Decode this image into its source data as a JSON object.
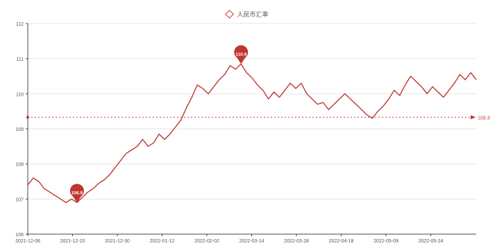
{
  "chart_data": {
    "type": "line",
    "legend": {
      "position": "top-center",
      "items": [
        "人民币汇率"
      ]
    },
    "y_axis": {
      "min": 106,
      "max": 112,
      "ticks": [
        106,
        107,
        108,
        109,
        110,
        111,
        112
      ],
      "grid": true
    },
    "x_axis": {
      "tick_labels": [
        "2021-12-06",
        "2021-12-20",
        "2021-12-30",
        "2022-01-12",
        "2022-02-02",
        "2022-03-14",
        "2022-03-28",
        "2022-04-18",
        "2022-05-09",
        "2022-05-24"
      ]
    },
    "series": [
      {
        "name": "人民币汇率",
        "color": "#c23531",
        "values": [
          107.4,
          107.6,
          107.5,
          107.3,
          107.2,
          107.1,
          107.0,
          106.9,
          107.0,
          106.9,
          107.05,
          107.2,
          107.3,
          107.45,
          107.55,
          107.7,
          107.9,
          108.1,
          108.3,
          108.4,
          108.5,
          108.7,
          108.5,
          108.6,
          108.85,
          108.7,
          108.85,
          109.05,
          109.25,
          109.6,
          109.9,
          110.25,
          110.15,
          110.0,
          110.2,
          110.4,
          110.55,
          110.8,
          110.7,
          110.85,
          110.6,
          110.45,
          110.25,
          110.1,
          109.85,
          110.05,
          109.9,
          110.1,
          110.3,
          110.15,
          110.3,
          110.0,
          109.85,
          109.7,
          109.75,
          109.55,
          109.7,
          109.85,
          110.0,
          109.85,
          109.7,
          109.55,
          109.4,
          109.3,
          109.5,
          109.65,
          109.85,
          110.1,
          109.95,
          110.25,
          110.5,
          110.35,
          110.2,
          110.0,
          110.2,
          110.05,
          109.9,
          110.1,
          110.3,
          110.55,
          110.4,
          110.6,
          110.4
        ]
      }
    ],
    "mark_points": [
      {
        "label": "106.9",
        "index": 9,
        "value": 106.9
      },
      {
        "label": "110.9",
        "index": 39,
        "value": 110.85
      }
    ],
    "mark_line": {
      "label": "109.3",
      "value": 109.33,
      "style": "dashed"
    }
  }
}
